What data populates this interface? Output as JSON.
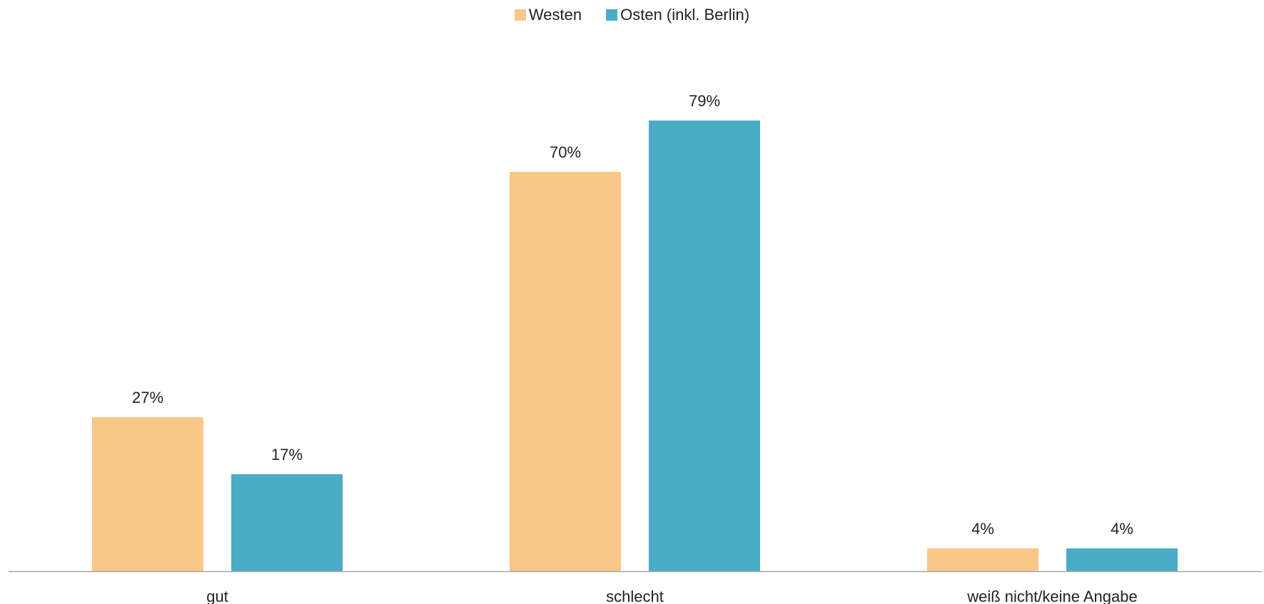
{
  "chart_data": {
    "type": "bar",
    "title": "",
    "xlabel": "",
    "ylabel": "",
    "ylim": [
      0,
      90
    ],
    "grid": false,
    "legend_position": "top-center",
    "categories": [
      "gut",
      "schlecht",
      "weiß nicht/keine Angabe"
    ],
    "series": [
      {
        "name": "Westen",
        "color": "#F8C788",
        "values": [
          27,
          70,
          4
        ],
        "labels": [
          "27%",
          "70%",
          "4%"
        ]
      },
      {
        "name": "Osten (inkl. Berlin)",
        "color": "#4BACC6",
        "values": [
          17,
          79,
          4
        ],
        "labels": [
          "17%",
          "79%",
          "4%"
        ]
      }
    ],
    "axis_color": "#A6A6A6"
  }
}
